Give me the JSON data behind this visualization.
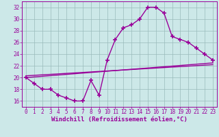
{
  "xlabel": "Windchill (Refroidissement éolien,°C)",
  "hours": [
    0,
    1,
    2,
    3,
    4,
    5,
    6,
    7,
    8,
    9,
    10,
    11,
    12,
    13,
    14,
    15,
    16,
    17,
    18,
    19,
    20,
    21,
    22,
    23
  ],
  "main_series": [
    20,
    19,
    18,
    18,
    17,
    16.5,
    16,
    16,
    19.5,
    17,
    23,
    26.5,
    28.5,
    29,
    30,
    32,
    32,
    31,
    27,
    26.5,
    26,
    25,
    24,
    23
  ],
  "trend1_x": [
    0,
    23
  ],
  "trend1_y": [
    20.0,
    22.5
  ],
  "trend2_x": [
    0,
    23
  ],
  "trend2_y": [
    20.3,
    22.2
  ],
  "line_color": "#990099",
  "bg_color": "#cce8e8",
  "grid_color": "#99bbbb",
  "ylim": [
    15.0,
    33.0
  ],
  "xlim": [
    -0.5,
    23.5
  ],
  "yticks": [
    16,
    18,
    20,
    22,
    24,
    26,
    28,
    30,
    32
  ],
  "xticks": [
    0,
    1,
    2,
    3,
    4,
    5,
    6,
    7,
    8,
    9,
    10,
    11,
    12,
    13,
    14,
    15,
    16,
    17,
    18,
    19,
    20,
    21,
    22,
    23
  ],
  "marker": "+",
  "markersize": 5,
  "linewidth": 1.0,
  "tick_fontsize": 5.5,
  "xlabel_fontsize": 6.5
}
